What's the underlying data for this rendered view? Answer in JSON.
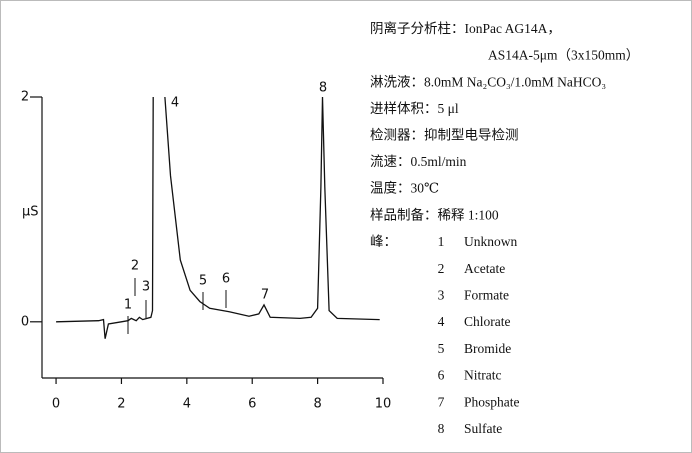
{
  "chart_data": {
    "type": "line",
    "y_label": "μS",
    "x": [
      0,
      1.3,
      1.45,
      1.5,
      1.6,
      2.0,
      2.2,
      2.3,
      2.45,
      2.55,
      2.65,
      2.9,
      2.95,
      2.97,
      3.1,
      3.33,
      3.5,
      3.8,
      4.1,
      4.4,
      4.7,
      5.3,
      5.9,
      6.2,
      6.36,
      6.55,
      7.46,
      7.8,
      8.0,
      8.1,
      8.15,
      8.22,
      8.35,
      8.6,
      9.9
    ],
    "series": [
      {
        "color": "#111111",
        "values": [
          0,
          0.01,
          0.02,
          -0.15,
          -0.02,
          0.0,
          0.01,
          0.03,
          0.01,
          0.04,
          0.02,
          0.04,
          0.1,
          2.0,
          null,
          2.0,
          1.3,
          0.55,
          0.28,
          0.18,
          0.12,
          0.09,
          0.05,
          0.07,
          0.15,
          0.04,
          0.03,
          0.04,
          0.12,
          1.2,
          2.0,
          1.2,
          0.1,
          0.03,
          0.02
        ]
      }
    ],
    "xlim": [
      -0.43,
      10
    ],
    "ylim": [
      -0.5,
      2
    ],
    "xticks": [
      0,
      2,
      4,
      6,
      8,
      10
    ],
    "yticks": [
      0,
      2
    ],
    "notes": [
      "阴离子分析柱：IonPac AG14A，",
      "AS14A-5μm（3x150mm）",
      "淋洗液：8.0mM Na₂CO₃/1.0mM NaHCO₃",
      "进样体积：5 μl",
      "检测器：抑制型电导检测",
      "流速：0.5ml/min",
      "温度：30℃",
      "样品制备：稀释 1:100"
    ],
    "peaks_heading": "峰：",
    "peaks": [
      {
        "number": "1",
        "name": "Unknown"
      },
      {
        "number": "2",
        "name": "Acetate"
      },
      {
        "number": "3",
        "name": "Formate"
      },
      {
        "number": "4",
        "name": "Chlorate"
      },
      {
        "number": "5",
        "name": "Bromide"
      },
      {
        "number": "6",
        "name": "Nitratc"
      },
      {
        "number": "7",
        "name": "Phosphate"
      },
      {
        "number": "8",
        "name": "Sulfate"
      }
    ]
  }
}
